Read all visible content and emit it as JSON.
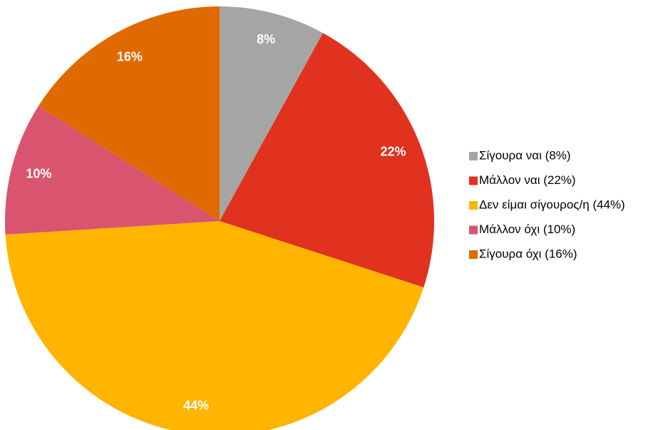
{
  "chart_data": {
    "type": "pie",
    "categories": [
      "Σίγουρα ναι (8%)",
      "Μάλλον ναι (22%)",
      "Δεν είμαι σίγουρος/η (44%)",
      "Μάλλον όχι (10%)",
      "Σίγουρα όχι (16%)"
    ],
    "values": [
      8,
      22,
      44,
      10,
      16
    ],
    "value_labels": [
      "8%",
      "22%",
      "44%",
      "10%",
      "16%"
    ],
    "colors": [
      "#a5a5a5",
      "#e0321e",
      "#ffb400",
      "#d9546e",
      "#e06a00"
    ],
    "legend": "right"
  }
}
